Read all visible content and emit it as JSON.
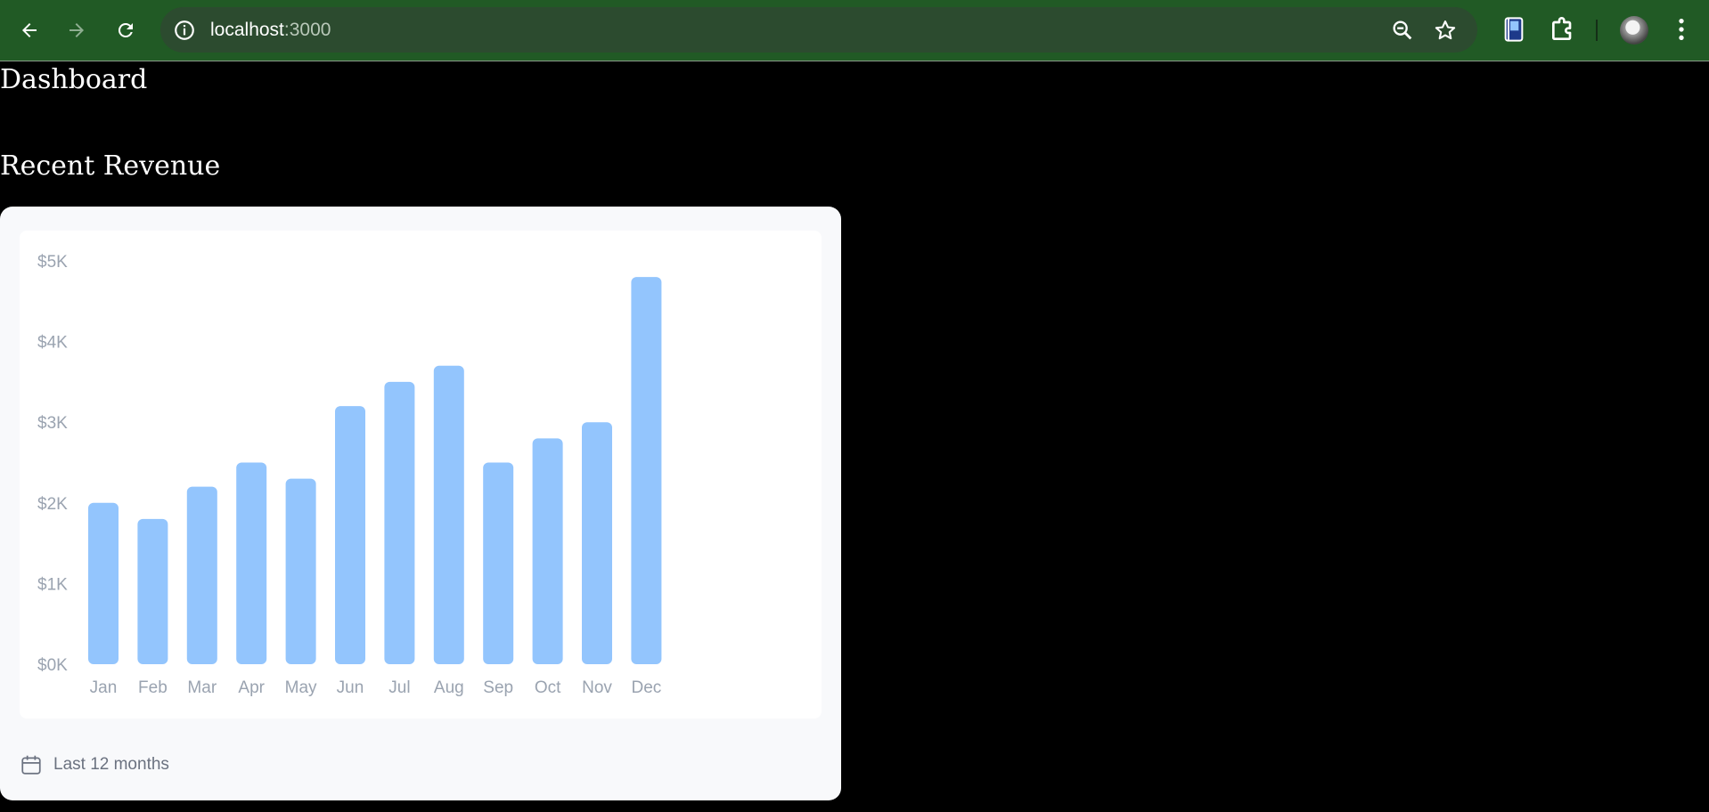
{
  "browser": {
    "url_host": "localhost",
    "url_port": ":3000",
    "icons": {
      "back": "arrow-left-icon",
      "forward": "arrow-right-icon",
      "reload": "reload-icon",
      "site_info": "info-icon",
      "zoom": "zoom-out-icon",
      "bookmark": "star-icon",
      "reading_list": "book-icon",
      "extensions": "puzzle-icon",
      "menu": "kebab-menu-icon"
    },
    "colors": {
      "frame": "#215a25",
      "omnibox": "#2c4b2f"
    }
  },
  "page": {
    "title": "Dashboard",
    "section_title": "Recent Revenue",
    "footer_label": "Last 12 months",
    "footer_icon": "calendar-icon"
  },
  "chart_data": {
    "type": "bar",
    "categories": [
      "Jan",
      "Feb",
      "Mar",
      "Apr",
      "May",
      "Jun",
      "Jul",
      "Aug",
      "Sep",
      "Oct",
      "Nov",
      "Dec"
    ],
    "values": [
      2000,
      1800,
      2200,
      2500,
      2300,
      3200,
      3500,
      3700,
      2500,
      2800,
      3000,
      4800
    ],
    "y_ticks": [
      "$5K",
      "$4K",
      "$3K",
      "$2K",
      "$1K",
      "$0K"
    ],
    "ylim": [
      0,
      5000
    ],
    "bar_color": "#93c5fd",
    "grid": false
  }
}
